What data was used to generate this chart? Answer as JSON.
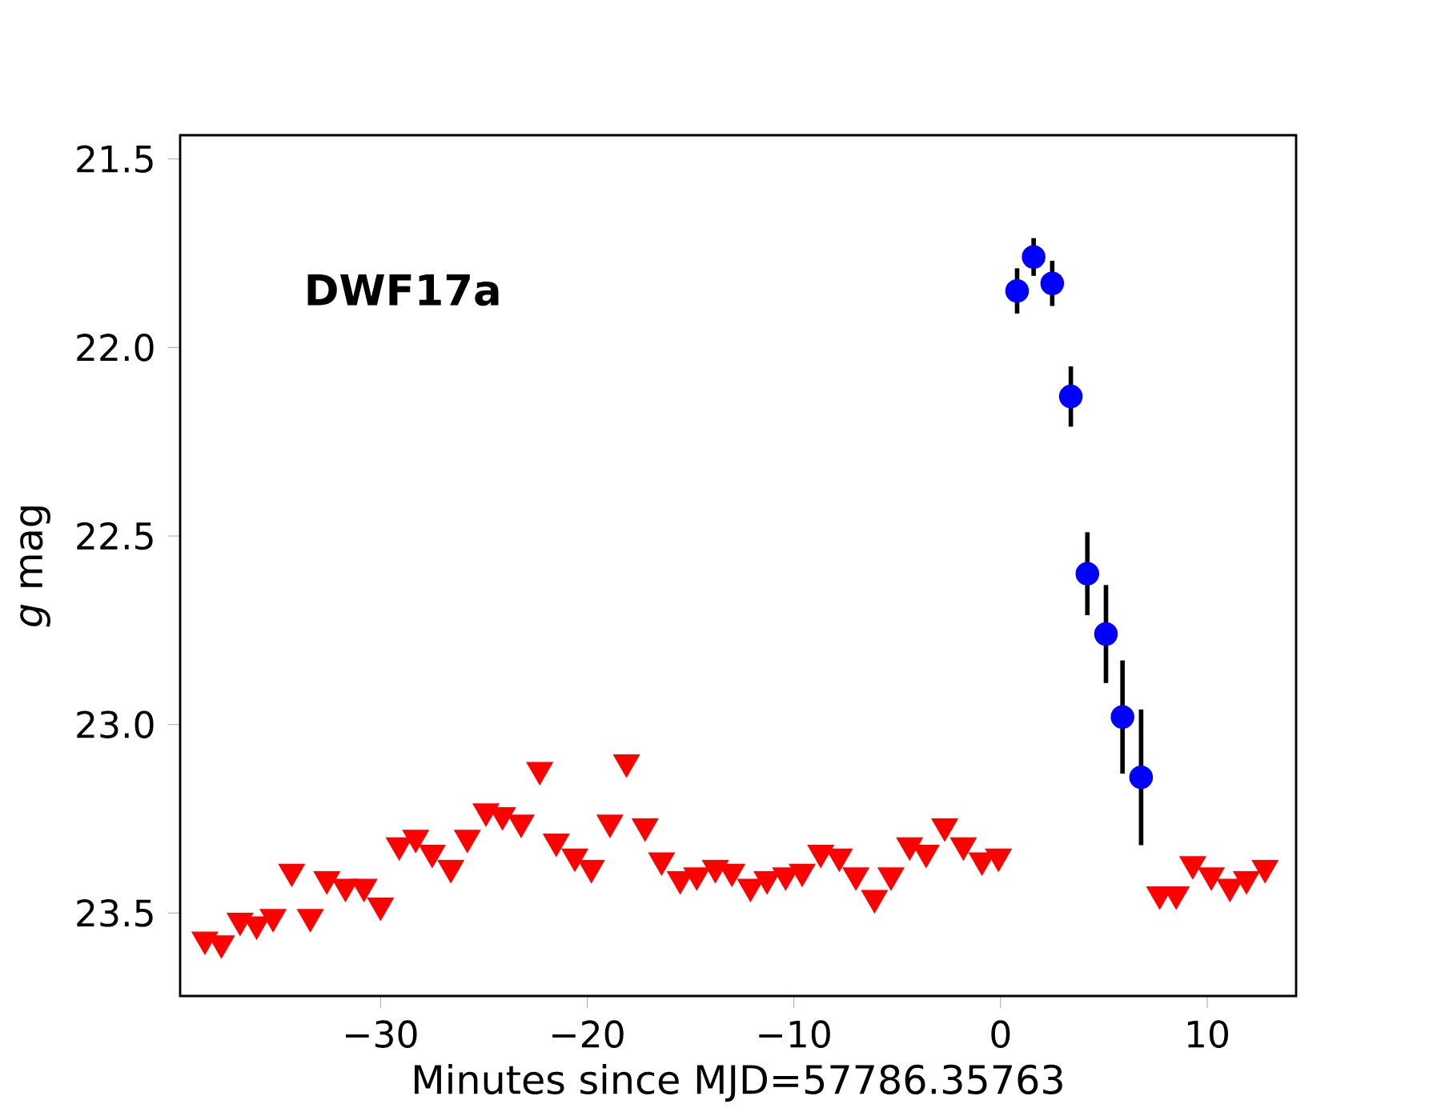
{
  "chart_data": {
    "type": "scatter",
    "xlabel": "Minutes since MJD=57786.35763",
    "ylabel": "*g* mag",
    "annotations": [
      "**DWF17a**"
    ],
    "xlim": [
      -39.7,
      14.3
    ],
    "ylim": [
      23.72,
      21.437
    ],
    "xticks": [
      {
        "value": -30,
        "label": "−30"
      },
      {
        "value": -20,
        "label": "−20"
      },
      {
        "value": -10,
        "label": "−10"
      },
      {
        "value": 0,
        "label": "0"
      },
      {
        "value": 10,
        "label": "10"
      }
    ],
    "yticks": [
      {
        "value": 21.5,
        "label": "21.5"
      },
      {
        "value": 22,
        "label": "22.0"
      },
      {
        "value": 22.5,
        "label": "22.5"
      },
      {
        "value": 23,
        "label": "23.0"
      },
      {
        "value": 23.5,
        "label": "23.5"
      }
    ],
    "series": [
      {
        "color": "#ff0000",
        "marker": "triangle",
        "x": [
          -38.5,
          -37.7,
          -36.8,
          -36.0,
          -35.2,
          -34.3,
          -33.4,
          -32.6,
          -31.7,
          -30.8,
          -30.0,
          -29.1,
          -28.3,
          -27.5,
          -26.6,
          -25.8,
          -24.9,
          -24.1,
          -23.2,
          -22.3,
          -21.5,
          -20.6,
          -19.8,
          -18.9,
          -18.1,
          -17.2,
          -16.4,
          -15.5,
          -14.7,
          -13.8,
          -13.0,
          -12.1,
          -11.3,
          -10.4,
          -9.6,
          -8.7,
          -7.8,
          -7.0,
          -6.1,
          -5.3,
          -4.4,
          -3.6,
          -2.7,
          -1.8,
          -0.9,
          -0.1,
          7.7,
          8.5,
          9.3,
          10.2,
          11.1,
          11.9,
          12.8
        ],
        "values": [
          23.57,
          23.58,
          23.52,
          23.53,
          23.51,
          23.39,
          23.51,
          23.41,
          23.43,
          23.43,
          23.48,
          23.32,
          23.3,
          23.34,
          23.38,
          23.3,
          23.23,
          23.24,
          23.26,
          23.12,
          23.31,
          23.35,
          23.38,
          23.26,
          23.1,
          23.27,
          23.36,
          23.41,
          23.4,
          23.38,
          23.39,
          23.43,
          23.41,
          23.4,
          23.39,
          23.34,
          23.35,
          23.4,
          23.46,
          23.4,
          23.32,
          23.34,
          23.27,
          23.32,
          23.36,
          23.35,
          23.45,
          23.45,
          23.37,
          23.4,
          23.43,
          23.41,
          23.38
        ]
      },
      {
        "color": "#0000ff",
        "marker": "circle",
        "x": [
          0.8,
          1.6,
          2.5,
          3.4,
          4.2,
          5.1,
          5.9,
          6.8
        ],
        "values": [
          21.85,
          21.76,
          21.83,
          22.13,
          22.6,
          22.76,
          22.98,
          23.14
        ],
        "errors": [
          0.06,
          0.05,
          0.06,
          0.08,
          0.11,
          0.13,
          0.15,
          0.18
        ]
      }
    ]
  }
}
